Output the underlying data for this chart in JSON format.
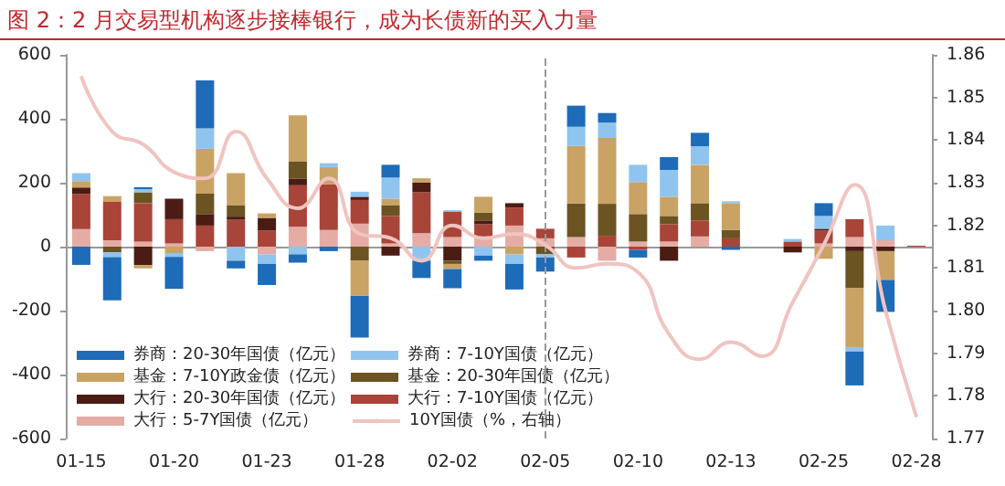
{
  "chart_data": {
    "type": "bar",
    "stacked": true,
    "title": "图 2：2 月交易型机构逐步接棒银行，成为长债新的买入力量",
    "categories": [
      "01-15",
      null,
      null,
      "01-20",
      null,
      null,
      "01-23",
      null,
      null,
      "01-28",
      null,
      null,
      "02-02",
      null,
      null,
      "02-05",
      null,
      null,
      "02-10",
      null,
      null,
      "02-13",
      null,
      null,
      "02-25",
      null,
      null,
      "02-28"
    ],
    "series": [
      {
        "name": "大行：5-7Y国债（亿元）",
        "color": "#e5aca5",
        "values": [
          55,
          20,
          16,
          10,
          -14,
          null,
          -24,
          62,
          52,
          72,
          10,
          42,
          30,
          30,
          66,
          26,
          30,
          -44,
          16,
          16,
          32,
          0,
          0,
          null,
          10,
          30,
          20,
          0
        ]
      },
      {
        "name": "大行：7-10Y国债（亿元）",
        "color": "#a94438",
        "values": [
          110,
          120,
          120,
          76,
          66,
          84,
          50,
          130,
          143,
          74,
          86,
          128,
          80,
          40,
          56,
          30,
          -34,
          34,
          -10,
          54,
          50,
          26,
          0,
          16,
          40,
          56,
          0,
          3
        ]
      },
      {
        "name": "大行：20-30年国债（亿元）",
        "color": "#4a1c14",
        "values": [
          20,
          0,
          -58,
          64,
          36,
          10,
          40,
          20,
          0,
          10,
          -28,
          30,
          -44,
          12,
          14,
          0,
          0,
          0,
          0,
          -44,
          0,
          0,
          0,
          -18,
          6,
          -14,
          -14,
          0
        ]
      },
      {
        "name": "基金：20-30年国债（亿元）",
        "color": "#6b5322",
        "values": [
          0,
          -18,
          34,
          0,
          64,
          36,
          0,
          54,
          0,
          -44,
          34,
          0,
          -10,
          24,
          0,
          -24,
          105,
          100,
          86,
          26,
          54,
          26,
          0,
          0,
          0,
          -116,
          0,
          0
        ]
      },
      {
        "name": "基金：7-10Y政金债（亿元）",
        "color": "#c9a364",
        "values": [
          20,
          18,
          -10,
          -20,
          140,
          100,
          14,
          145,
          54,
          -110,
          20,
          14,
          -16,
          50,
          -24,
          0,
          180,
          206,
          100,
          60,
          120,
          84,
          0,
          0,
          -38,
          -184,
          -90,
          0
        ]
      },
      {
        "name": "券商：7-10Y国债（亿元）",
        "color": "#8fc4ef",
        "values": [
          25,
          -15,
          10,
          -12,
          64,
          -44,
          -30,
          -24,
          12,
          16,
          66,
          -44,
          4,
          -28,
          -30,
          -10,
          60,
          48,
          54,
          84,
          58,
          6,
          0,
          8,
          40,
          -14,
          46,
          0
        ]
      },
      {
        "name": "券商：20-30年国债（亿元）",
        "color": "#1e6bb8",
        "values": [
          -57,
          -135,
          6,
          -100,
          150,
          -24,
          -66,
          -26,
          -14,
          -130,
          40,
          -54,
          -60,
          -16,
          -80,
          -44,
          66,
          30,
          -24,
          40,
          42,
          -10,
          0,
          0,
          40,
          -106,
          -100,
          0
        ]
      },
      {
        "name": "10Y国债（%，右轴）",
        "type": "line",
        "axis": "y2",
        "color": "#f0c4c0",
        "marker": "none",
        "values": [
          1.855,
          1.842,
          1.839,
          1.8325,
          1.831,
          1.842,
          1.831,
          1.824,
          1.831,
          1.818,
          1.817,
          1.8117,
          1.82,
          1.817,
          1.818,
          1.8154,
          1.81,
          1.811,
          1.809,
          1.7945,
          1.7886,
          1.7926,
          1.7893,
          1.802,
          1.8154,
          1.8295,
          1.8,
          1.775
        ]
      }
    ],
    "ylim": [
      -600,
      600
    ],
    "yticks": [
      -600,
      -400,
      -200,
      0,
      200,
      400,
      600
    ],
    "y2lim": [
      1.77,
      1.86
    ],
    "y2ticks": [
      {
        "value": 1.77,
        "label": "1.77"
      },
      {
        "value": 1.78,
        "label": "1.78"
      },
      {
        "value": 1.79,
        "label": "1.79"
      },
      {
        "value": 1.8,
        "label": "1.80"
      },
      {
        "value": 1.81,
        "label": "1.81"
      },
      {
        "value": 1.82,
        "label": "1.82"
      },
      {
        "value": 1.83,
        "label": "1.83"
      },
      {
        "value": 1.84,
        "label": "1.84"
      },
      {
        "value": 1.85,
        "label": "1.85"
      },
      {
        "value": 1.86,
        "label": "1.86"
      }
    ],
    "ref_lines": [
      {
        "axis": "x",
        "value": "02-05",
        "color": "#999999",
        "line_style": "dashed"
      }
    ],
    "legend": "bottom left",
    "grid": false
  }
}
